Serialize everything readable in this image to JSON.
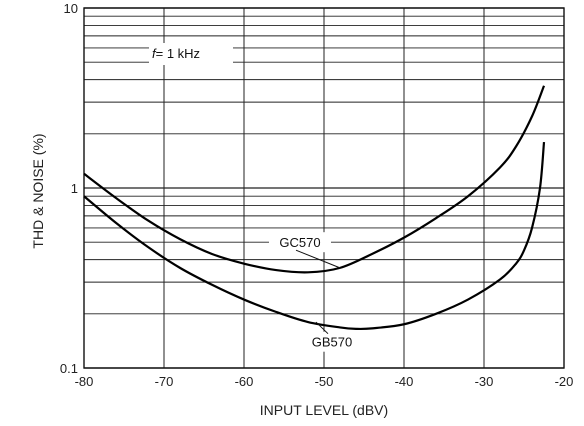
{
  "chart_data": {
    "type": "line",
    "title": "",
    "xlabel": "INPUT LEVEL (dBV)",
    "ylabel": "THD & NOISE (%)",
    "xlim": [
      -80,
      -20
    ],
    "ylim": [
      0.1,
      10
    ],
    "yscale": "log",
    "grid": true,
    "x_ticks": [
      -80,
      -70,
      -60,
      -50,
      -40,
      -30,
      -20
    ],
    "x_tick_labels": [
      "-80",
      "-70",
      "-60",
      "-50",
      "-40",
      "-30",
      "-20"
    ],
    "y_ticks": [
      0.1,
      1,
      10
    ],
    "y_tick_labels": [
      "0.1",
      "1",
      "10"
    ],
    "annotation": {
      "italic": "f",
      "text": "= 1 kHz"
    },
    "series": [
      {
        "name": "GC570",
        "x": [
          -80,
          -76,
          -72,
          -68,
          -64,
          -60,
          -56,
          -52,
          -48,
          -44,
          -40,
          -36,
          -32,
          -28,
          -26,
          -24,
          -22.5
        ],
        "y": [
          1.2,
          0.88,
          0.66,
          0.52,
          0.43,
          0.38,
          0.35,
          0.34,
          0.36,
          0.43,
          0.53,
          0.68,
          0.9,
          1.3,
          1.7,
          2.5,
          3.7
        ]
      },
      {
        "name": "GB570",
        "x": [
          -80,
          -76,
          -72,
          -68,
          -64,
          -60,
          -56,
          -52,
          -48,
          -46,
          -44,
          -40,
          -36,
          -32,
          -28,
          -26,
          -25,
          -24,
          -23,
          -22.5
        ],
        "y": [
          0.9,
          0.64,
          0.47,
          0.36,
          0.29,
          0.24,
          0.205,
          0.18,
          0.168,
          0.165,
          0.166,
          0.175,
          0.2,
          0.24,
          0.31,
          0.38,
          0.45,
          0.6,
          1.0,
          1.8
        ]
      }
    ],
    "labels": [
      {
        "series": "GC570",
        "text": "GC570",
        "x": -53,
        "y": 0.5,
        "target_x": -48,
        "target_y": 0.36
      },
      {
        "series": "GB570",
        "text": "GB570",
        "x": -49,
        "y": 0.14,
        "target_x": -51,
        "target_y": 0.18
      }
    ]
  }
}
